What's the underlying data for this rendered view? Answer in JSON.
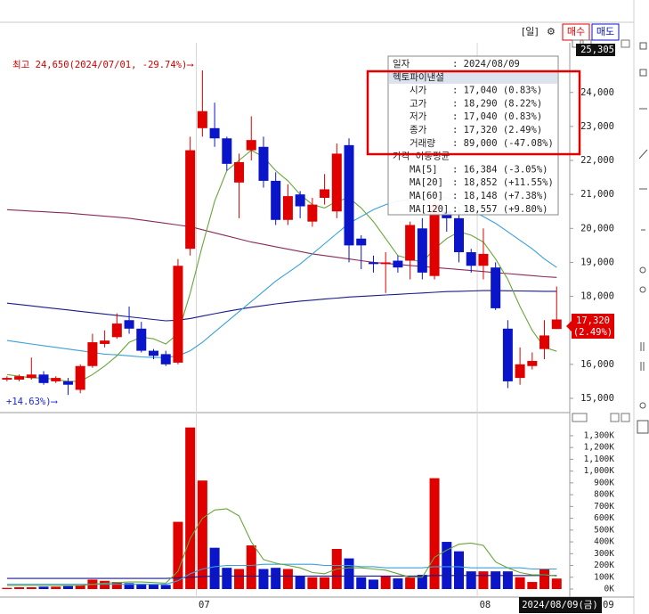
{
  "toolbar": {
    "period": "[일]",
    "buy": "매수",
    "sell": "매도"
  },
  "chart_data": [
    {
      "type": "candlestick",
      "categories": [
        null,
        null,
        null,
        null,
        null,
        null,
        null,
        null,
        null,
        null,
        null,
        null,
        null,
        null,
        null,
        null,
        "07",
        null,
        null,
        null,
        null,
        null,
        null,
        null,
        null,
        null,
        null,
        null,
        null,
        null,
        null,
        null,
        null,
        null,
        null,
        null,
        null,
        null,
        null,
        "08",
        null,
        null,
        null,
        null,
        null,
        null
      ],
      "open": [
        15550,
        15550,
        15600,
        15700,
        15500,
        15500,
        15250,
        15950,
        16600,
        16800,
        17300,
        17050,
        16400,
        16300,
        16050,
        19400,
        22950,
        22950,
        22650,
        21350,
        22300,
        22400,
        21400,
        20250,
        21000,
        20200,
        20900,
        20500,
        22450,
        19700,
        19000,
        18950,
        19050,
        19050,
        20000,
        18600,
        20500,
        20300,
        19300,
        18900,
        18850,
        17050,
        15600,
        15950,
        16450,
        17040
      ],
      "high": [
        15650,
        15700,
        16200,
        15800,
        15650,
        15600,
        16000,
        16900,
        17000,
        17500,
        17700,
        17250,
        16450,
        16400,
        19100,
        22700,
        24650,
        23700,
        22700,
        22200,
        23300,
        22700,
        21650,
        21300,
        21100,
        20900,
        21600,
        22500,
        22650,
        19800,
        19200,
        19300,
        19200,
        20200,
        20300,
        21000,
        20700,
        20600,
        19400,
        20000,
        19000,
        17300,
        16500,
        16350,
        17300,
        18290
      ],
      "low": [
        15500,
        15500,
        15550,
        15400,
        15450,
        15100,
        15150,
        15900,
        16500,
        16750,
        16900,
        16350,
        16150,
        15950,
        16000,
        19200,
        22700,
        22400,
        21700,
        20300,
        22000,
        21200,
        20100,
        20100,
        20300,
        20050,
        20700,
        20300,
        19000,
        18800,
        18700,
        18100,
        18700,
        18500,
        18500,
        18500,
        19900,
        19000,
        18700,
        18500,
        17600,
        15300,
        15400,
        15850,
        16150,
        17040
      ],
      "close": [
        15600,
        15650,
        15700,
        15450,
        15600,
        15400,
        15950,
        16650,
        16700,
        17200,
        17050,
        16400,
        16250,
        16000,
        18900,
        22300,
        23450,
        22650,
        21900,
        21950,
        22600,
        21400,
        20250,
        20950,
        20650,
        20700,
        21150,
        22200,
        19500,
        19500,
        18950,
        19000,
        18850,
        20100,
        18700,
        20700,
        20300,
        19300,
        18900,
        19250,
        17650,
        15500,
        16000,
        16100,
        16850,
        17320
      ],
      "up_color": "#e00000",
      "down_color": "#0a14c8",
      "lines": [
        {
          "color": "#8a2a5a",
          "values": [
            20550,
            20530,
            20510,
            20490,
            20470,
            20450,
            20420,
            20390,
            20360,
            20330,
            20300,
            20250,
            20200,
            20150,
            20100,
            20050,
            19960,
            19870,
            19780,
            19690,
            19600,
            19530,
            19460,
            19390,
            19320,
            19250,
            19200,
            19150,
            19100,
            19050,
            19000,
            18970,
            18940,
            18910,
            18880,
            18850,
            18820,
            18790,
            18760,
            18730,
            18700,
            18670,
            18640,
            18610,
            18580,
            18557
          ]
        },
        {
          "color": "#1a1a8a",
          "values": [
            17800,
            17760,
            17720,
            17680,
            17640,
            17600,
            17560,
            17520,
            17480,
            17440,
            17400,
            17360,
            17320,
            17280,
            17300,
            17350,
            17420,
            17490,
            17560,
            17620,
            17680,
            17730,
            17780,
            17820,
            17860,
            17890,
            17920,
            17950,
            17980,
            18000,
            18020,
            18040,
            18060,
            18080,
            18100,
            18120,
            18140,
            18150,
            18160,
            18170,
            18170,
            18165,
            18160,
            18155,
            18150,
            18148
          ]
        },
        {
          "color": "#3aa0d8",
          "values": [
            16700,
            16650,
            16600,
            16550,
            16500,
            16450,
            16400,
            16350,
            16300,
            16280,
            16250,
            16220,
            16200,
            16200,
            16250,
            16400,
            16650,
            16950,
            17250,
            17550,
            17850,
            18150,
            18450,
            18700,
            18950,
            19250,
            19550,
            19850,
            20150,
            20350,
            20550,
            20700,
            20800,
            20850,
            20900,
            20950,
            20900,
            20750,
            20550,
            20350,
            20150,
            19900,
            19650,
            19400,
            19100,
            18852
          ]
        },
        {
          "color": "#6aa53a",
          "values": [
            15700,
            15650,
            15600,
            15600,
            15550,
            15500,
            15500,
            15700,
            15950,
            16250,
            16650,
            16800,
            16750,
            16600,
            16900,
            18100,
            19500,
            20800,
            21700,
            22000,
            22300,
            22100,
            21700,
            21400,
            21000,
            20700,
            20600,
            20800,
            20900,
            20600,
            20200,
            19700,
            19200,
            19100,
            19000,
            19400,
            19700,
            19900,
            19800,
            19600,
            19100,
            18500,
            17700,
            17000,
            16500,
            16384
          ]
        }
      ],
      "ylim": [
        14606,
        25305
      ],
      "yticks": [
        {
          "value": 15000,
          "label": "15,000"
        },
        {
          "value": 16000,
          "label": "16,000"
        },
        {
          "value": 17000,
          "label": "17,000"
        },
        {
          "value": 18000,
          "label": "18,000"
        },
        {
          "value": 19000,
          "label": "19,000"
        },
        {
          "value": 20000,
          "label": "20,000"
        },
        {
          "value": 21000,
          "label": "21,000"
        },
        {
          "value": 22000,
          "label": "22,000"
        },
        {
          "value": 23000,
          "label": "23,000"
        },
        {
          "value": 24000,
          "label": "24,000"
        },
        {
          "value": 25305,
          "label": "25,305"
        }
      ],
      "annotations": [
        "최고 24,650(2024/07/01, -29.74%)⟶",
        "+14.63%)⟶"
      ],
      "last_price_label": "17,320",
      "last_change_label": "(2.49%)"
    },
    {
      "type": "bar",
      "values": [
        10000,
        15000,
        15000,
        20000,
        20000,
        25000,
        30000,
        80000,
        70000,
        60000,
        50000,
        45000,
        40000,
        35000,
        570000,
        1370000,
        920000,
        350000,
        180000,
        170000,
        370000,
        170000,
        180000,
        170000,
        110000,
        100000,
        100000,
        340000,
        260000,
        100000,
        80000,
        110000,
        90000,
        100000,
        120000,
        940000,
        400000,
        320000,
        150000,
        150000,
        150000,
        150000,
        100000,
        60000,
        170000,
        89000
      ],
      "lines": [
        {
          "color": "#1a1a8a",
          "values": [
            90000,
            90000,
            90000,
            90000,
            90000,
            90000,
            90000,
            90000,
            90000,
            90000,
            90000,
            90000,
            90000,
            90000,
            95000,
            100000,
            105000,
            110000,
            110000,
            110000,
            110000,
            110000,
            110000,
            110000,
            110000,
            110000,
            110000,
            110000,
            110000,
            110000,
            110000,
            110000,
            110000,
            110000,
            110000,
            115000,
            115000,
            115000,
            115000,
            115000,
            115000,
            115000,
            115000,
            115000,
            115000,
            115000
          ]
        },
        {
          "color": "#3aa0d8",
          "values": [
            40000,
            40000,
            40000,
            40000,
            40000,
            40000,
            40000,
            40000,
            40000,
            40000,
            40000,
            40000,
            40000,
            40000,
            70000,
            130000,
            170000,
            190000,
            200000,
            200000,
            200000,
            210000,
            210000,
            210000,
            210000,
            210000,
            200000,
            200000,
            200000,
            190000,
            190000,
            180000,
            180000,
            180000,
            180000,
            190000,
            190000,
            190000,
            180000,
            180000,
            180000,
            180000,
            180000,
            170000,
            170000,
            170000
          ]
        },
        {
          "color": "#6aa53a",
          "values": [
            30000,
            30000,
            30000,
            30000,
            30000,
            30000,
            30000,
            40000,
            50000,
            55000,
            60000,
            60000,
            55000,
            50000,
            150000,
            430000,
            600000,
            670000,
            680000,
            620000,
            400000,
            250000,
            220000,
            200000,
            180000,
            140000,
            130000,
            170000,
            180000,
            180000,
            170000,
            160000,
            130000,
            100000,
            100000,
            270000,
            330000,
            380000,
            390000,
            370000,
            230000,
            180000,
            140000,
            120000,
            120000,
            110000
          ]
        }
      ],
      "ylim": [
        0,
        1428000
      ],
      "yticks": [
        {
          "value": 0,
          "label": "0K"
        },
        {
          "value": 100000,
          "label": "100K"
        },
        {
          "value": 200000,
          "label": "200K"
        },
        {
          "value": 300000,
          "label": "300K"
        },
        {
          "value": 400000,
          "label": "400K"
        },
        {
          "value": 500000,
          "label": "500K"
        },
        {
          "value": 600000,
          "label": "600K"
        },
        {
          "value": 700000,
          "label": "700K"
        },
        {
          "value": 800000,
          "label": "800K"
        },
        {
          "value": 900000,
          "label": "900K"
        },
        {
          "value": 1000000,
          "label": "1,000K"
        },
        {
          "value": 1100000,
          "label": "1,100K"
        },
        {
          "value": 1200000,
          "label": "1,200K"
        },
        {
          "value": 1300000,
          "label": "1,300K"
        }
      ]
    }
  ],
  "tooltip": [
    {
      "label": "일자",
      "value": ": 2024/08/09"
    },
    {
      "label": "헥토파이낸셜"
    },
    {
      "label": "시가",
      "value": ": 17,040 (0.83%)"
    },
    {
      "label": "고가",
      "value": ": 18,290 (8.22%)"
    },
    {
      "label": "저가",
      "value": ": 17,040 (0.83%)"
    },
    {
      "label": "종가",
      "value": ": 17,320 (2.49%)"
    },
    {
      "label": "거래량",
      "value": ": 89,000 (-47.08%)"
    },
    {
      "label": "가격 이동평균"
    },
    {
      "label": "MA[5]",
      "value": ": 16,384 (-3.05%)"
    },
    {
      "label": "MA[20]",
      "value": ": 18,852 (+11.55%)"
    },
    {
      "label": "MA[60]",
      "value": ": 18,148 (+7.38%)"
    },
    {
      "label": "MA[120]",
      "value": ": 18,557 (+9.80%)"
    }
  ],
  "crosshair_date": "2024/08/09(금)",
  "x_edge_label": "09"
}
